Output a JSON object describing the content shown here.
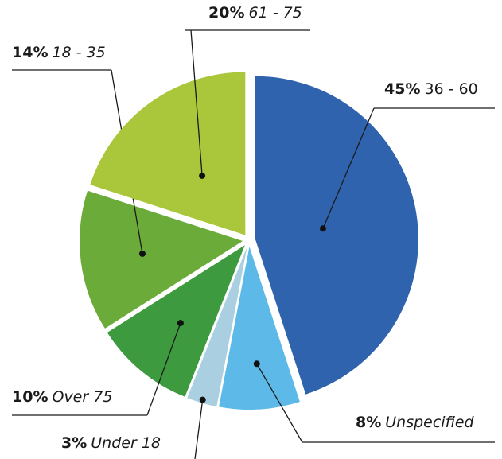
{
  "chart_data": {
    "type": "pie",
    "categories": [
      "36 - 60",
      "Unspecified",
      "Under 18",
      "Over 75",
      "18 - 35",
      "61 - 75"
    ],
    "values": [
      45,
      8,
      3,
      10,
      14,
      20
    ],
    "value_labels": [
      "45%",
      "8%",
      "3%",
      "10%",
      "14%",
      "20%"
    ],
    "colors": [
      "#2f63ad",
      "#5cb9e8",
      "#a9cfe0",
      "#3e9a3f",
      "#6bab3a",
      "#aac63b"
    ]
  }
}
